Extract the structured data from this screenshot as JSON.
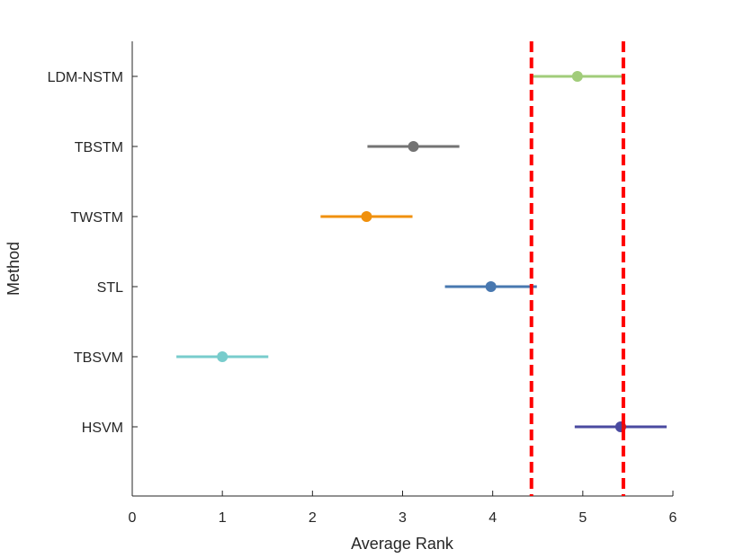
{
  "chart_data": {
    "type": "interval",
    "title": "",
    "xlabel": "Average Rank",
    "ylabel": "Method",
    "xlim": [
      0,
      6
    ],
    "xticks": [
      0,
      1,
      2,
      3,
      4,
      5,
      6
    ],
    "xtick_labels": [
      "0",
      "1",
      "2",
      "3",
      "4",
      "5",
      "6"
    ],
    "categories": [
      "LDM-NSTM",
      "TBSTM",
      "TWSTM",
      "STL",
      "TBSVM",
      "HSVM"
    ],
    "series": [
      {
        "name": "LDM-NSTM",
        "mean": 4.94,
        "lower": 4.43,
        "upper": 5.45,
        "color": "#a1cc7a"
      },
      {
        "name": "TBSTM",
        "mean": 3.12,
        "lower": 2.61,
        "upper": 3.63,
        "color": "#737373"
      },
      {
        "name": "TWSTM",
        "mean": 2.6,
        "lower": 2.09,
        "upper": 3.11,
        "color": "#f0900c"
      },
      {
        "name": "STL",
        "mean": 3.98,
        "lower": 3.47,
        "upper": 4.49,
        "color": "#4878b0"
      },
      {
        "name": "TBSVM",
        "mean": 1.0,
        "lower": 0.49,
        "upper": 1.51,
        "color": "#78cccc"
      },
      {
        "name": "HSVM",
        "mean": 5.42,
        "lower": 4.91,
        "upper": 5.93,
        "color": "#4a4aa0",
        "marker_edge": "#e01010"
      }
    ],
    "reference_lines": [
      {
        "x": 4.43,
        "style": "dashed",
        "color": "#ff0000"
      },
      {
        "x": 5.45,
        "style": "dashed",
        "color": "#ff0000"
      }
    ],
    "grid": false,
    "legend": "none"
  }
}
